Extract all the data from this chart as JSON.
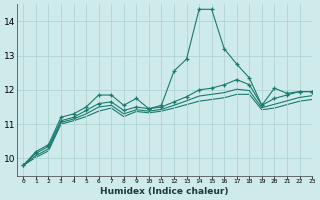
{
  "xlabel": "Humidex (Indice chaleur)",
  "ylabel": "",
  "background_color": "#ceeaea",
  "grid_color": "#b0d4d4",
  "line_color": "#1a7a6e",
  "xlim": [
    -0.5,
    23
  ],
  "ylim": [
    9.5,
    14.5
  ],
  "yticks": [
    10,
    11,
    12,
    13,
    14
  ],
  "xticks": [
    0,
    1,
    2,
    3,
    4,
    5,
    6,
    7,
    8,
    9,
    10,
    11,
    12,
    13,
    14,
    15,
    16,
    17,
    18,
    19,
    20,
    21,
    22,
    23
  ],
  "series1_x": [
    0,
    1,
    2,
    3,
    4,
    5,
    6,
    7,
    8,
    9,
    10,
    11,
    12,
    13,
    14,
    15,
    16,
    17,
    18,
    19,
    20,
    21,
    22,
    23
  ],
  "series1_y": [
    9.8,
    10.2,
    10.4,
    11.2,
    11.3,
    11.5,
    11.85,
    11.85,
    11.55,
    11.75,
    11.45,
    11.55,
    12.55,
    12.9,
    14.35,
    14.35,
    13.2,
    12.75,
    12.35,
    11.55,
    12.05,
    11.9,
    11.95,
    11.95
  ],
  "series2_x": [
    0,
    1,
    2,
    3,
    4,
    5,
    6,
    7,
    8,
    9,
    10,
    11,
    12,
    13,
    14,
    15,
    16,
    17,
    18,
    19,
    20,
    21,
    22,
    23
  ],
  "series2_y": [
    9.8,
    10.15,
    10.35,
    11.1,
    11.2,
    11.4,
    11.6,
    11.65,
    11.4,
    11.5,
    11.45,
    11.5,
    11.65,
    11.8,
    12.0,
    12.05,
    12.15,
    12.3,
    12.15,
    11.55,
    11.75,
    11.85,
    11.95,
    11.95
  ],
  "series3_x": [
    0,
    1,
    2,
    3,
    4,
    5,
    6,
    7,
    8,
    9,
    10,
    11,
    12,
    13,
    14,
    15,
    16,
    17,
    18,
    19,
    20,
    21,
    22,
    23
  ],
  "series3_y": [
    9.8,
    10.08,
    10.28,
    11.05,
    11.15,
    11.3,
    11.5,
    11.55,
    11.3,
    11.42,
    11.38,
    11.43,
    11.55,
    11.68,
    11.82,
    11.87,
    11.92,
    12.02,
    11.98,
    11.48,
    11.58,
    11.68,
    11.78,
    11.83
  ],
  "series4_x": [
    0,
    1,
    2,
    3,
    4,
    5,
    6,
    7,
    8,
    9,
    10,
    11,
    12,
    13,
    14,
    15,
    16,
    17,
    18,
    19,
    20,
    21,
    22,
    23
  ],
  "series4_y": [
    9.8,
    10.03,
    10.22,
    11.0,
    11.1,
    11.22,
    11.38,
    11.47,
    11.22,
    11.37,
    11.33,
    11.38,
    11.47,
    11.57,
    11.67,
    11.72,
    11.77,
    11.87,
    11.87,
    11.42,
    11.47,
    11.57,
    11.67,
    11.72
  ]
}
